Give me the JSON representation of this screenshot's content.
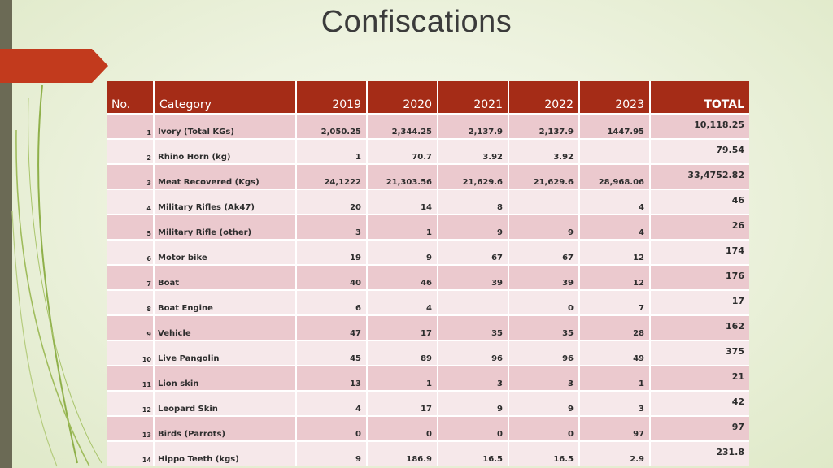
{
  "slide": {
    "title": "Confiscations",
    "accent_color": "#a52c17",
    "sidebar_color": "#6b6a55"
  },
  "table": {
    "headers": {
      "no": "No.",
      "category": "Category",
      "y2019": "2019",
      "y2020": "2020",
      "y2021": "2021",
      "y2022": "2022",
      "y2023": "2023",
      "total": "TOTAL"
    },
    "rows": [
      {
        "no": "1",
        "category": "Ivory  (Total KGs)",
        "y2019": "2,050.25",
        "y2020": "2,344.25",
        "y2021": "2,137.9",
        "y2022": "2,137.9",
        "y2023": "1447.95",
        "total": "10,118.25"
      },
      {
        "no": "2",
        "category": "Rhino Horn (kg)",
        "y2019": "1",
        "y2020": "70.7",
        "y2021": "3.92",
        "y2022": "3.92",
        "y2023": "",
        "total": "79.54"
      },
      {
        "no": "3",
        "category": "Meat Recovered (Kgs)",
        "y2019": "24,1222",
        "y2020": "21,303.56",
        "y2021": "21,629.6",
        "y2022": "21,629.6",
        "y2023": "28,968.06",
        "total": "33,4752.82"
      },
      {
        "no": "4",
        "category": "Military Rifles (Ak47)",
        "y2019": "20",
        "y2020": "14",
        "y2021": "8",
        "y2022": "",
        "y2023": "4",
        "total": "46"
      },
      {
        "no": "5",
        "category": "Military Rifle (other)",
        "y2019": "3",
        "y2020": "1",
        "y2021": "9",
        "y2022": "9",
        "y2023": "4",
        "total": "26"
      },
      {
        "no": "6",
        "category": "Motor bike",
        "y2019": "19",
        "y2020": "9",
        "y2021": "67",
        "y2022": "67",
        "y2023": "12",
        "total": "174"
      },
      {
        "no": "7",
        "category": "Boat",
        "y2019": "40",
        "y2020": "46",
        "y2021": "39",
        "y2022": "39",
        "y2023": "12",
        "total": "176"
      },
      {
        "no": "8",
        "category": "Boat Engine",
        "y2019": "6",
        "y2020": "4",
        "y2021": "",
        "y2022": "0",
        "y2023": "7",
        "total": "17"
      },
      {
        "no": "9",
        "category": "Vehicle",
        "y2019": "47",
        "y2020": "17",
        "y2021": "35",
        "y2022": "35",
        "y2023": "28",
        "total": "162"
      },
      {
        "no": "10",
        "category": "Live Pangolin",
        "y2019": "45",
        "y2020": "89",
        "y2021": "96",
        "y2022": "96",
        "y2023": "49",
        "total": "375"
      },
      {
        "no": "11",
        "category": "Lion skin",
        "y2019": "13",
        "y2020": "1",
        "y2021": "3",
        "y2022": "3",
        "y2023": "1",
        "total": "21"
      },
      {
        "no": "12",
        "category": "Leopard Skin",
        "y2019": "4",
        "y2020": "17",
        "y2021": "9",
        "y2022": "9",
        "y2023": "3",
        "total": "42"
      },
      {
        "no": "13",
        "category": "Birds (Parrots)",
        "y2019": "0",
        "y2020": "0",
        "y2021": "0",
        "y2022": "0",
        "y2023": "97",
        "total": "97"
      },
      {
        "no": "14",
        "category": "Hippo Teeth (kgs)",
        "y2019": "9",
        "y2020": "186.9",
        "y2021": "16.5",
        "y2022": "16.5",
        "y2023": "2.9",
        "total": "231.8"
      }
    ]
  }
}
